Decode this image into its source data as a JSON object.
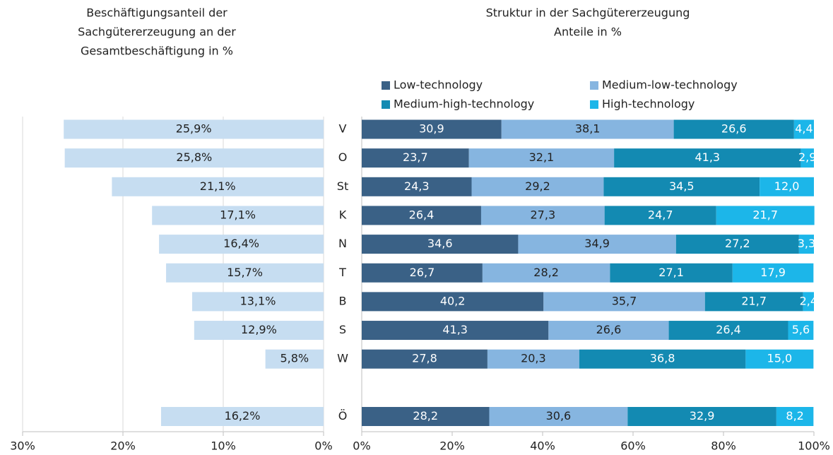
{
  "chart_data": [
    {
      "type": "bar",
      "title": [
        "Beschäftigungsanteil der",
        "Sachgütererzeugung an der",
        "Gesamtbeschäftigung in %"
      ],
      "categories": [
        "V",
        "O",
        "St",
        "K",
        "N",
        "T",
        "B",
        "S",
        "W",
        null,
        "Ö"
      ],
      "values": [
        25.9,
        25.8,
        21.1,
        17.1,
        16.4,
        15.7,
        13.1,
        12.9,
        5.8,
        null,
        16.2
      ],
      "value_labels": [
        "25,9%",
        "25,8%",
        "21,1%",
        "17,1%",
        "16,4%",
        "15,7%",
        "13,1%",
        "12,9%",
        "5,8%",
        null,
        "16,2%"
      ],
      "color": "#c6ddf1",
      "xlim": [
        30,
        0
      ],
      "xticks": [
        {
          "value": 30,
          "label": "30%"
        },
        {
          "value": 20,
          "label": "20%"
        },
        {
          "value": 10,
          "label": "10%"
        },
        {
          "value": 0,
          "label": "0%"
        }
      ],
      "grid": true
    },
    {
      "type": "stacked_bar",
      "title": [
        "Struktur in der Sachgütererzeugung",
        "Anteile in %"
      ],
      "series": [
        {
          "name": "Low-technology",
          "color": "#3a6186",
          "values": [
            30.9,
            23.7,
            24.3,
            26.4,
            34.6,
            26.7,
            40.2,
            41.3,
            27.8,
            null,
            28.2
          ],
          "value_labels": [
            "30,9",
            "23,7",
            "24,3",
            "26,4",
            "34,6",
            "26,7",
            "40,2",
            "41,3",
            "27,8",
            null,
            "28,2"
          ]
        },
        {
          "name": "Medium-low-technology",
          "color": "#86b5e0",
          "values": [
            38.1,
            32.1,
            29.2,
            27.3,
            34.9,
            28.2,
            35.7,
            26.6,
            20.3,
            null,
            30.6
          ],
          "value_labels": [
            "38,1",
            "32,1",
            "29,2",
            "27,3",
            "34,9",
            "28,2",
            "35,7",
            "26,6",
            "20,3",
            null,
            "30,6"
          ]
        },
        {
          "name": "Medium-high-technology",
          "color": "#138ab2",
          "values": [
            26.6,
            41.3,
            34.5,
            24.7,
            27.2,
            27.1,
            21.7,
            26.4,
            36.8,
            null,
            32.9
          ],
          "value_labels": [
            "26,6",
            "41,3",
            "34,5",
            "24,7",
            "27,2",
            "27,1",
            "21,7",
            "26,4",
            "36,8",
            null,
            "32,9"
          ]
        },
        {
          "name": "High-technology",
          "color": "#1cb6e9",
          "values": [
            4.4,
            2.9,
            12.0,
            21.7,
            3.3,
            17.9,
            2.4,
            5.6,
            15.0,
            null,
            8.2
          ],
          "value_labels": [
            "4,4",
            "2,9",
            "12,0",
            "21,7",
            "3,3",
            "17,9",
            "2,4",
            "5,6",
            "15,0",
            null,
            "8,2"
          ]
        }
      ],
      "xlim": [
        0,
        100
      ],
      "xticks": [
        {
          "value": 0,
          "label": "0%"
        },
        {
          "value": 20,
          "label": "20%"
        },
        {
          "value": 40,
          "label": "40%"
        },
        {
          "value": 60,
          "label": "60%"
        },
        {
          "value": 80,
          "label": "80%"
        },
        {
          "value": 100,
          "label": "100%"
        }
      ],
      "grid": false,
      "legend": "top"
    }
  ]
}
